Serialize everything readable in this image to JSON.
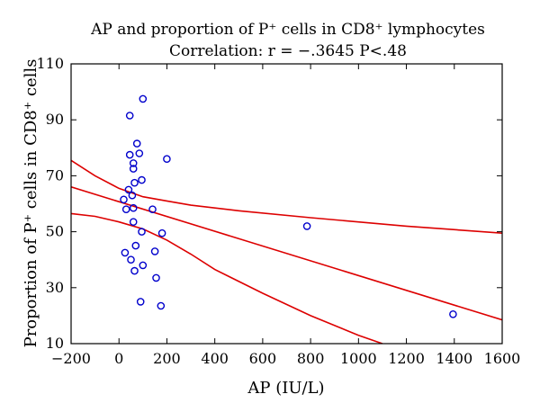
{
  "chart_data": {
    "type": "scatter",
    "title": "AP and proportion of P⁺ cells in CD8⁺ lymphocytes",
    "subtitle": "Correlation: r = −.3645 P<.48",
    "xlabel": "AP (IU/L)",
    "ylabel": "Proportion of P⁺ cells in CD8⁺ cells",
    "xlim": [
      -200,
      1600
    ],
    "ylim": [
      10,
      110
    ],
    "x_ticks": [
      -200,
      0,
      200,
      400,
      600,
      800,
      1000,
      1200,
      1400,
      1600
    ],
    "x_tick_labels": [
      "−200",
      "0",
      "200",
      "400",
      "600",
      "800",
      "1000",
      "1200",
      "1400",
      "1600"
    ],
    "y_ticks": [
      10,
      30,
      50,
      70,
      90,
      110
    ],
    "y_tick_labels": [
      "10",
      "30",
      "50",
      "70",
      "90",
      "110"
    ],
    "grid": false,
    "points": [
      {
        "x": 100,
        "y": 97.5
      },
      {
        "x": 45,
        "y": 91.5
      },
      {
        "x": 75,
        "y": 81.5
      },
      {
        "x": 45,
        "y": 77.5
      },
      {
        "x": 85,
        "y": 78
      },
      {
        "x": 200,
        "y": 76
      },
      {
        "x": 60,
        "y": 74.5
      },
      {
        "x": 60,
        "y": 72.5
      },
      {
        "x": 95,
        "y": 68.5
      },
      {
        "x": 65,
        "y": 67.5
      },
      {
        "x": 40,
        "y": 65
      },
      {
        "x": 55,
        "y": 63
      },
      {
        "x": 20,
        "y": 61.5
      },
      {
        "x": 30,
        "y": 58
      },
      {
        "x": 60,
        "y": 58.5
      },
      {
        "x": 140,
        "y": 58
      },
      {
        "x": 60,
        "y": 53.5
      },
      {
        "x": 95,
        "y": 50
      },
      {
        "x": 180,
        "y": 49.5
      },
      {
        "x": 785,
        "y": 52
      },
      {
        "x": 70,
        "y": 45
      },
      {
        "x": 25,
        "y": 42.5
      },
      {
        "x": 150,
        "y": 43
      },
      {
        "x": 50,
        "y": 40
      },
      {
        "x": 100,
        "y": 38
      },
      {
        "x": 65,
        "y": 36
      },
      {
        "x": 155,
        "y": 33.5
      },
      {
        "x": 90,
        "y": 25
      },
      {
        "x": 175,
        "y": 23.5
      },
      {
        "x": 1395,
        "y": 20.5
      }
    ],
    "regression_line": [
      {
        "x": -200,
        "y": 66
      },
      {
        "x": 1600,
        "y": 18.5
      }
    ],
    "confidence_upper": [
      {
        "x": -200,
        "y": 75.5
      },
      {
        "x": -100,
        "y": 70
      },
      {
        "x": 0,
        "y": 65.5
      },
      {
        "x": 100,
        "y": 62.5
      },
      {
        "x": 200,
        "y": 61
      },
      {
        "x": 300,
        "y": 59.5
      },
      {
        "x": 500,
        "y": 57.5
      },
      {
        "x": 800,
        "y": 55
      },
      {
        "x": 1200,
        "y": 52
      },
      {
        "x": 1600,
        "y": 49.5
      }
    ],
    "confidence_lower": [
      {
        "x": -200,
        "y": 56.5
      },
      {
        "x": -100,
        "y": 55.5
      },
      {
        "x": 0,
        "y": 53.5
      },
      {
        "x": 100,
        "y": 51
      },
      {
        "x": 200,
        "y": 47
      },
      {
        "x": 300,
        "y": 42
      },
      {
        "x": 400,
        "y": 36.5
      },
      {
        "x": 600,
        "y": 28
      },
      {
        "x": 800,
        "y": 20
      },
      {
        "x": 1000,
        "y": 13
      },
      {
        "x": 1100,
        "y": 10
      }
    ],
    "colors": {
      "points": "#0000cc",
      "lines": "#dd0000",
      "frame": "#000000"
    }
  }
}
